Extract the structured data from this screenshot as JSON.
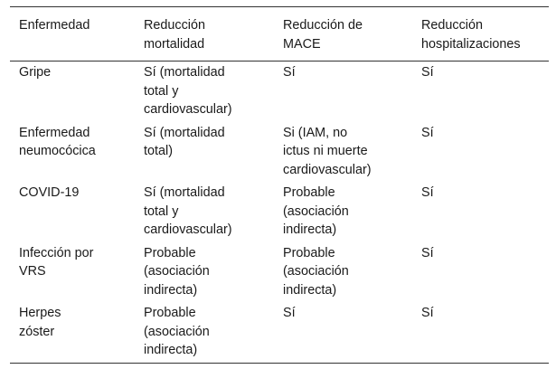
{
  "table": {
    "headers": [
      [
        "Enfermedad"
      ],
      [
        "Reducción",
        "mortalidad"
      ],
      [
        "Reducción de",
        "MACE"
      ],
      [
        "Reducción",
        "hospitalizaciones"
      ]
    ],
    "rows": [
      [
        [
          "Gripe"
        ],
        [
          "Sí (mortalidad",
          "total y",
          "cardiovascular)"
        ],
        [
          "Sí"
        ],
        [
          "Sí"
        ]
      ],
      [
        [
          "Enfermedad",
          "neumocócica"
        ],
        [
          "Sí (mortalidad",
          "total)"
        ],
        [
          "Si (IAM, no",
          "ictus ni muerte",
          "cardiovascular)"
        ],
        [
          "Sí"
        ]
      ],
      [
        [
          "COVID-19"
        ],
        [
          "Sí (mortalidad",
          "total y",
          "cardiovascular)"
        ],
        [
          "Probable",
          "(asociación",
          "indirecta)"
        ],
        [
          "Sí"
        ]
      ],
      [
        [
          "Infección por",
          "VRS"
        ],
        [
          "Probable",
          "(asociación",
          "indirecta)"
        ],
        [
          "Probable",
          "(asociación",
          "indirecta)"
        ],
        [
          "Sí"
        ]
      ],
      [
        [
          "Herpes",
          "zóster"
        ],
        [
          "Probable",
          "(asociación",
          "indirecta)"
        ],
        [
          "Sí"
        ],
        [
          "Sí"
        ]
      ]
    ]
  }
}
